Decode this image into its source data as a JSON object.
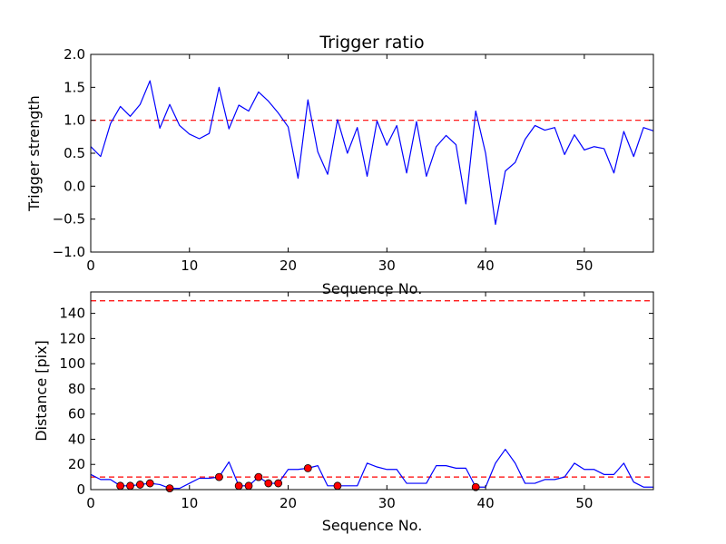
{
  "chart_data": [
    {
      "type": "line",
      "title": "Trigger ratio",
      "xlabel": "Sequence No.",
      "ylabel": "Trigger strength",
      "xlim": [
        0,
        57
      ],
      "ylim": [
        -1.0,
        2.0
      ],
      "xticks": [
        0,
        10,
        20,
        30,
        40,
        50
      ],
      "yticks": [
        "2.0",
        "1.5",
        "1.0",
        "0.5",
        "0.0",
        "−0.5",
        "−1.0"
      ],
      "ytick_values": [
        2.0,
        1.5,
        1.0,
        0.5,
        0.0,
        -0.5,
        -1.0
      ],
      "threshold": 1.0,
      "series": [
        {
          "name": "trigger strength",
          "color": "#0000ff",
          "x": [
            0,
            1,
            2,
            3,
            4,
            5,
            6,
            7,
            8,
            9,
            10,
            11,
            12,
            13,
            14,
            15,
            16,
            17,
            18,
            19,
            20,
            21,
            22,
            23,
            24,
            25,
            26,
            27,
            28,
            29,
            30,
            31,
            32,
            33,
            34,
            35,
            36,
            37,
            38,
            39,
            40,
            41,
            42,
            43,
            44,
            45,
            46,
            47,
            48,
            49,
            50,
            51,
            52,
            53,
            54,
            55,
            56,
            57
          ],
          "values": [
            0.6,
            0.45,
            0.95,
            1.21,
            1.06,
            1.24,
            1.6,
            0.88,
            1.24,
            0.92,
            0.79,
            0.72,
            0.8,
            1.5,
            0.87,
            1.23,
            1.14,
            1.43,
            1.29,
            1.11,
            0.9,
            0.12,
            1.31,
            0.52,
            0.18,
            1.01,
            0.5,
            0.89,
            0.15,
            0.99,
            0.62,
            0.92,
            0.2,
            0.98,
            0.15,
            0.6,
            0.77,
            0.63,
            -0.27,
            1.14,
            0.5,
            -0.58,
            0.23,
            0.36,
            0.71,
            0.92,
            0.85,
            0.89,
            0.48,
            0.78,
            0.55,
            0.6,
            0.57,
            0.2,
            0.83,
            0.45,
            0.89,
            0.84
          ]
        }
      ],
      "threshold_color": "#ff0000"
    },
    {
      "type": "line",
      "title": "",
      "xlabel": "Sequence No.",
      "ylabel": "Distance [pix]",
      "xlim": [
        0,
        57
      ],
      "ylim": [
        0,
        157
      ],
      "xticks": [
        0,
        10,
        20,
        30,
        40,
        50
      ],
      "yticks": [
        "140",
        "120",
        "100",
        "80",
        "60",
        "40",
        "20",
        "0"
      ],
      "ytick_values": [
        140,
        120,
        100,
        80,
        60,
        40,
        20,
        0
      ],
      "thresholds": [
        150,
        10
      ],
      "threshold_color": "#ff0000",
      "series": [
        {
          "name": "distance",
          "color": "#0000ff",
          "x": [
            0,
            1,
            2,
            3,
            4,
            5,
            6,
            7,
            8,
            9,
            10,
            11,
            12,
            13,
            14,
            15,
            16,
            17,
            18,
            19,
            20,
            21,
            22,
            23,
            24,
            25,
            26,
            27,
            28,
            29,
            30,
            31,
            32,
            33,
            34,
            35,
            36,
            37,
            38,
            39,
            40,
            41,
            42,
            43,
            44,
            45,
            46,
            47,
            48,
            49,
            50,
            51,
            52,
            53,
            54,
            55,
            56,
            57
          ],
          "values": [
            12,
            8,
            8,
            3,
            3,
            4,
            5,
            4,
            1,
            1,
            5,
            9,
            9,
            10,
            22,
            3,
            3,
            10,
            5,
            5,
            16,
            16,
            17,
            19,
            3,
            3,
            3,
            3,
            21,
            18,
            16,
            16,
            5,
            5,
            5,
            19,
            19,
            17,
            17,
            2,
            2,
            21,
            32,
            21,
            5,
            5,
            8,
            8,
            10,
            21,
            16,
            16,
            12,
            12,
            21,
            6,
            2,
            2
          ]
        },
        {
          "name": "triggered points",
          "color": "#ff0000",
          "x": [
            3,
            4,
            5,
            6,
            8,
            13,
            15,
            16,
            17,
            18,
            19,
            22,
            25,
            39
          ],
          "values": [
            3,
            3,
            4,
            5,
            1,
            10,
            3,
            3,
            10,
            5,
            5,
            17,
            3,
            2
          ]
        }
      ]
    }
  ]
}
